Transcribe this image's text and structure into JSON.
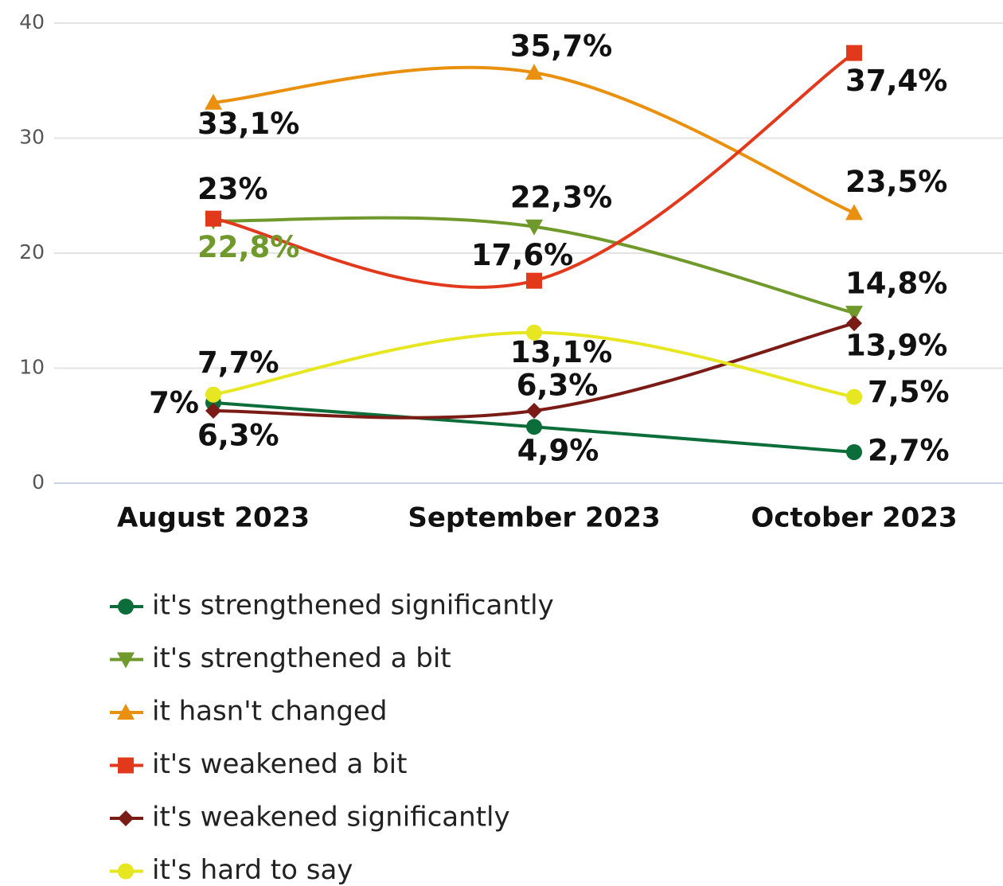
{
  "chart_data": {
    "type": "line",
    "categories": [
      "August 2023",
      "September 2023",
      "October 2023"
    ],
    "ylim": [
      0,
      40
    ],
    "yticks": [
      0,
      10,
      20,
      30,
      40
    ],
    "grid": true,
    "legend": "bottom",
    "series": [
      {
        "name": "it's strengthened significantly",
        "color": "#0b6e3a",
        "marker": "circle",
        "values": [
          7,
          4.9,
          2.7
        ],
        "value_labels": [
          "7%",
          "4,9%",
          "2,7%"
        ]
      },
      {
        "name": "it's strengthened a bit",
        "color": "#6f9a2b",
        "marker": "triangle-down",
        "values": [
          22.8,
          22.3,
          14.8
        ],
        "value_labels": [
          "22,8%",
          "22,3%",
          "14,8%"
        ]
      },
      {
        "name": "it hasn't changed",
        "color": "#ea900f",
        "marker": "triangle-up",
        "values": [
          33.1,
          35.7,
          23.5
        ],
        "value_labels": [
          "33,1%",
          "35,7%",
          "23,5%"
        ]
      },
      {
        "name": "it's weakened a bit",
        "color": "#e2391d",
        "marker": "square",
        "values": [
          23,
          17.6,
          37.4
        ],
        "value_labels": [
          "23%",
          "17,6%",
          "37,4%"
        ]
      },
      {
        "name": "it's weakened significantly",
        "color": "#7a1b15",
        "marker": "diamond",
        "values": [
          6.3,
          6.3,
          13.9
        ],
        "value_labels": [
          "6,3%",
          "6,3%",
          "13,9%"
        ]
      },
      {
        "name": "it's hard to say",
        "color": "#e6e621",
        "marker": "circle",
        "values": [
          7.7,
          13.1,
          7.5
        ],
        "value_labels": [
          "7,7%",
          "13,1%",
          "7,5%"
        ]
      }
    ]
  }
}
